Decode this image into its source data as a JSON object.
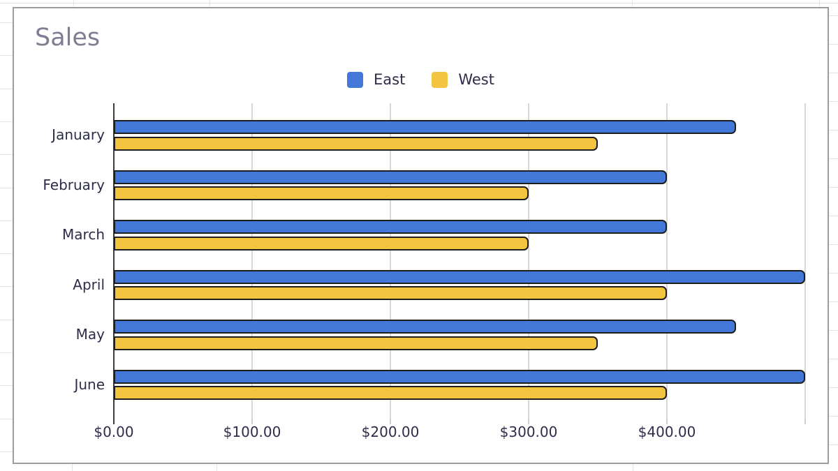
{
  "chart": {
    "title": "Sales",
    "colors": {
      "title_text": "#7E7D92",
      "axis_text": "#2D2D4B",
      "east_series": "#4478D8",
      "west_series": "#F2C440",
      "bar_outline": "#1E1E1E",
      "gridline": "#D8D8D8",
      "axis_line": "#3C3C3C",
      "chart_border": "#9C9C9C"
    }
  },
  "chart_data": {
    "type": "bar",
    "orientation": "horizontal",
    "title": "Sales",
    "categories": [
      "January",
      "February",
      "March",
      "April",
      "May",
      "June"
    ],
    "series": [
      {
        "name": "East",
        "color": "#4478D8",
        "values": [
          450,
          400,
          400,
          500,
          450,
          500
        ]
      },
      {
        "name": "West",
        "color": "#F2C440",
        "values": [
          350,
          300,
          300,
          400,
          350,
          400
        ]
      }
    ],
    "xlabel": "",
    "ylabel": "",
    "xlim": [
      0,
      500
    ],
    "x_ticks": [
      {
        "value": 0,
        "label": "$0.00"
      },
      {
        "value": 100,
        "label": "$100.00"
      },
      {
        "value": 200,
        "label": "$200.00"
      },
      {
        "value": 300,
        "label": "$300.00"
      },
      {
        "value": 400,
        "label": "$400.00"
      },
      {
        "value": 500,
        "label": ""
      }
    ],
    "grid": true,
    "legend_position": "top-center"
  }
}
